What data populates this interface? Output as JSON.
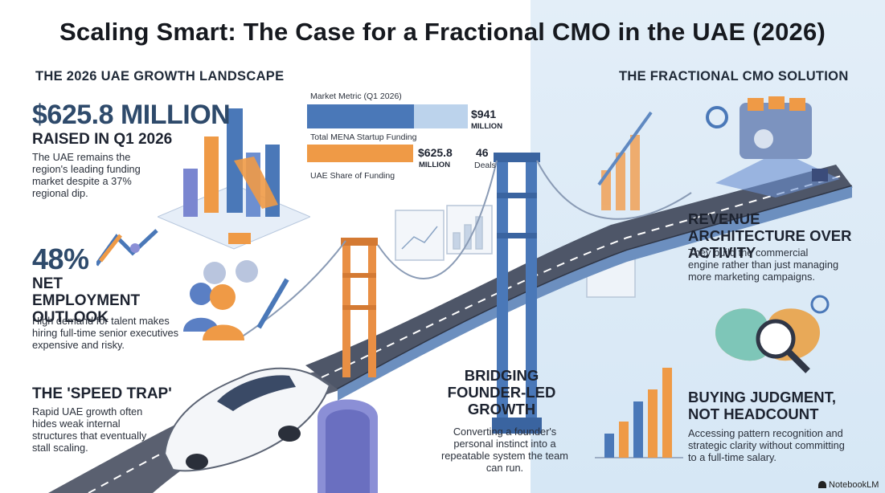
{
  "title": "Scaling Smart: The Case for a Fractional CMO in the UAE (2026)",
  "left_heading": "THE 2026 UAE GROWTH LANDSCAPE",
  "right_heading": "THE FRACTIONAL CMO SOLUTION",
  "funding": {
    "value": "$625.8 MILLION",
    "label": "RAISED IN Q1 2026",
    "desc": "The UAE remains the region's leading funding market despite a 37% regional dip."
  },
  "market_metric": {
    "header": "Market Metric (Q1 2026)",
    "rows": [
      {
        "label": "Total MENA Startup Funding",
        "value": "$941",
        "unit": "MILLION",
        "amount": 941
      },
      {
        "label": "UAE Share of Funding",
        "value": "$625.8",
        "unit": "MILLION",
        "amount": 625.8,
        "deals_value": "46",
        "deals_label": "Deals"
      }
    ],
    "colors": {
      "total": "#4a78b8",
      "uae": "#ef9a46",
      "remainder": "#bcd3ec"
    }
  },
  "employment": {
    "value": "48%",
    "label": "NET EMPLOYMENT OUTLOOK",
    "desc": "High demand for talent makes hiring full-time senior executives expensive and risky."
  },
  "speed_trap": {
    "title": "THE 'SPEED TRAP'",
    "desc": "Rapid UAE growth often hides weak internal structures that eventually stall scaling."
  },
  "bridging": {
    "title": "BRIDGING FOUNDER-LED GROWTH",
    "desc": "Converting a founder's personal instinct into a repeatable system the team can run."
  },
  "revenue": {
    "title": "REVENUE ARCHITECTURE OVER ACTIVITY",
    "desc": "They build the commercial engine rather than just managing more marketing campaigns."
  },
  "judgment": {
    "title": "BUYING JUDGMENT, NOT HEADCOUNT",
    "desc": "Accessing pattern recognition and strategic clarity without committing to a full-time salary."
  },
  "watermark": "NotebookLM"
}
